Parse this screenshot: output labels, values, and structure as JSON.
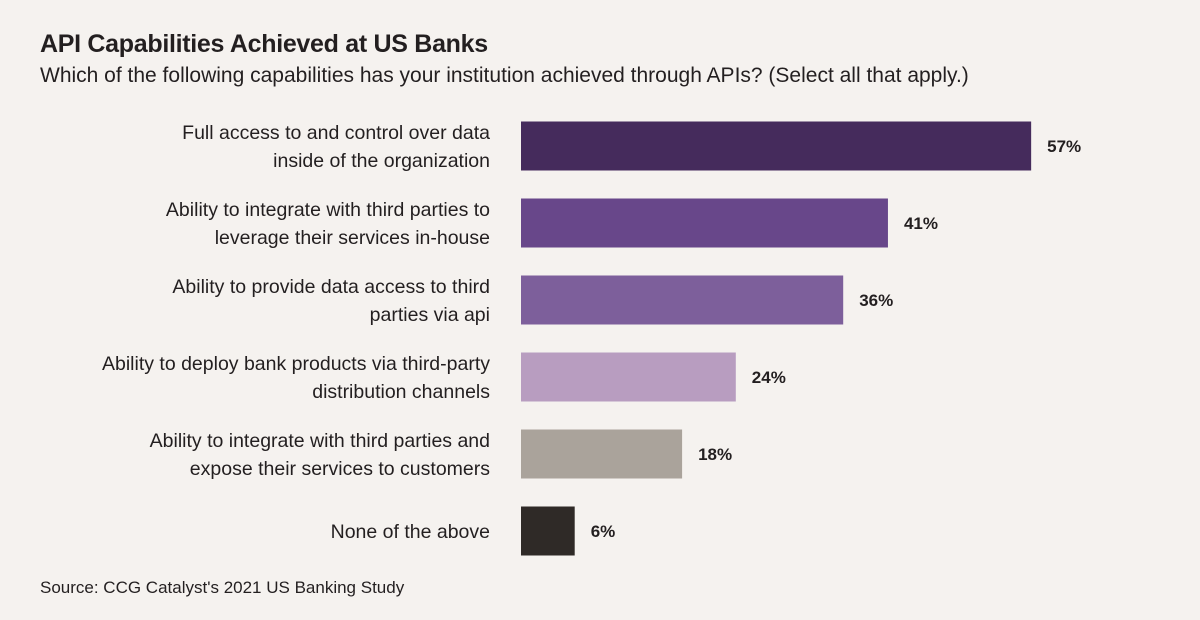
{
  "chart_data": {
    "type": "bar",
    "orientation": "horizontal",
    "title": "API Capabilities Achieved at US Banks",
    "subtitle": "Which of the following capabilities has your institution achieved through APIs? (Select all that apply.)",
    "categories": [
      [
        "Full access to and control over data",
        "inside of the organization"
      ],
      [
        "Ability to integrate with third parties to",
        "leverage their services in-house"
      ],
      [
        "Ability to provide data access to third",
        "parties via api"
      ],
      [
        "Ability to deploy bank products via third-party",
        "distribution channels"
      ],
      [
        "Ability to integrate with third parties and",
        "expose their services to customers"
      ],
      [
        "None of the above"
      ]
    ],
    "values": [
      57,
      41,
      36,
      24,
      18,
      6
    ],
    "value_labels": [
      "57%",
      "41%",
      "36%",
      "24%",
      "18%",
      "6%"
    ],
    "colors": [
      "#452b5c",
      "#68478a",
      "#7d5f9b",
      "#b89dc0",
      "#aaa39b",
      "#2f2a27"
    ],
    "xlabel": "",
    "ylabel": "",
    "xlim": [
      0,
      100
    ],
    "grid": false,
    "legend": "none",
    "source": "Source: CCG Catalyst's 2021 US Banking Study"
  }
}
